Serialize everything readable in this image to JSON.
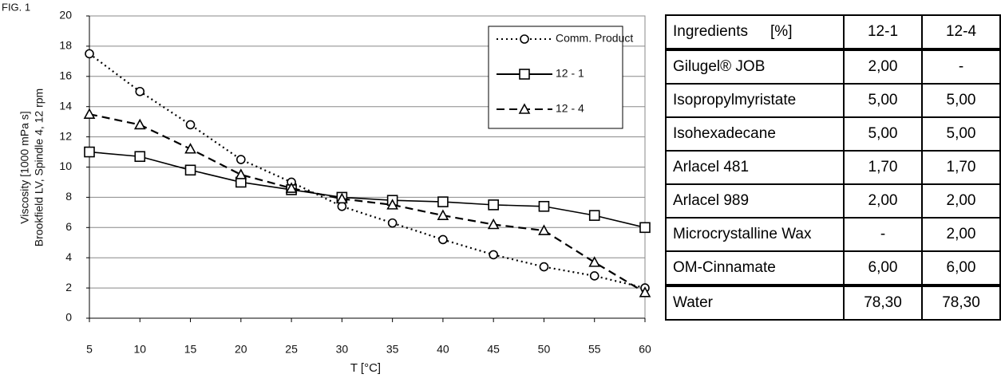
{
  "figure_label": "FIG. 1",
  "chart_data": {
    "type": "line",
    "x_label": "T [°C]",
    "y_label": [
      "Viscosity [1000 mPa s]",
      "Brookfield LV, Spindle 4, 12 rpm"
    ],
    "x": [
      5,
      10,
      15,
      20,
      25,
      30,
      35,
      40,
      45,
      50,
      55,
      60
    ],
    "xlim": [
      5,
      60
    ],
    "xticks": [
      5,
      10,
      15,
      20,
      25,
      30,
      35,
      40,
      45,
      50,
      55,
      60
    ],
    "ylim": [
      0,
      20
    ],
    "yticks": [
      0,
      2,
      4,
      6,
      8,
      10,
      12,
      14,
      16,
      18,
      20
    ],
    "grid": true,
    "legend": "upper right",
    "series": [
      {
        "name": "Comm. Product",
        "color": "#000000",
        "dash": "dotted",
        "marker": "circle",
        "values": [
          17.5,
          15.0,
          12.8,
          10.5,
          9.0,
          7.4,
          6.3,
          5.2,
          4.2,
          3.4,
          2.8,
          2.0
        ]
      },
      {
        "name": "12 - 1",
        "color": "#000000",
        "dash": "solid",
        "marker": "square",
        "values": [
          11.0,
          10.7,
          9.8,
          9.0,
          8.5,
          8.0,
          7.8,
          7.7,
          7.5,
          7.4,
          6.8,
          6.0
        ]
      },
      {
        "name": "12 - 4",
        "color": "#000000",
        "dash": "dashed",
        "marker": "triangle",
        "values": [
          13.5,
          12.8,
          11.2,
          9.5,
          8.6,
          7.9,
          7.5,
          6.8,
          6.2,
          5.8,
          3.7,
          1.7
        ]
      }
    ]
  },
  "table": {
    "header": [
      "Ingredients",
      "[%]",
      "12-1",
      "12-4"
    ],
    "rows": [
      [
        "Gilugel® JOB",
        "2,00",
        "-"
      ],
      [
        "Isopropylmyristate",
        "5,00",
        "5,00"
      ],
      [
        "Isohexadecane",
        "5,00",
        "5,00"
      ],
      [
        "Arlacel 481",
        "1,70",
        "1,70"
      ],
      [
        "Arlacel 989",
        "2,00",
        "2,00"
      ],
      [
        "Microcrystalline Wax",
        "-",
        "2,00"
      ],
      [
        "OM-Cinnamate",
        "6,00",
        "6,00"
      ],
      [
        "Water",
        "78,30",
        "78,30"
      ]
    ]
  }
}
